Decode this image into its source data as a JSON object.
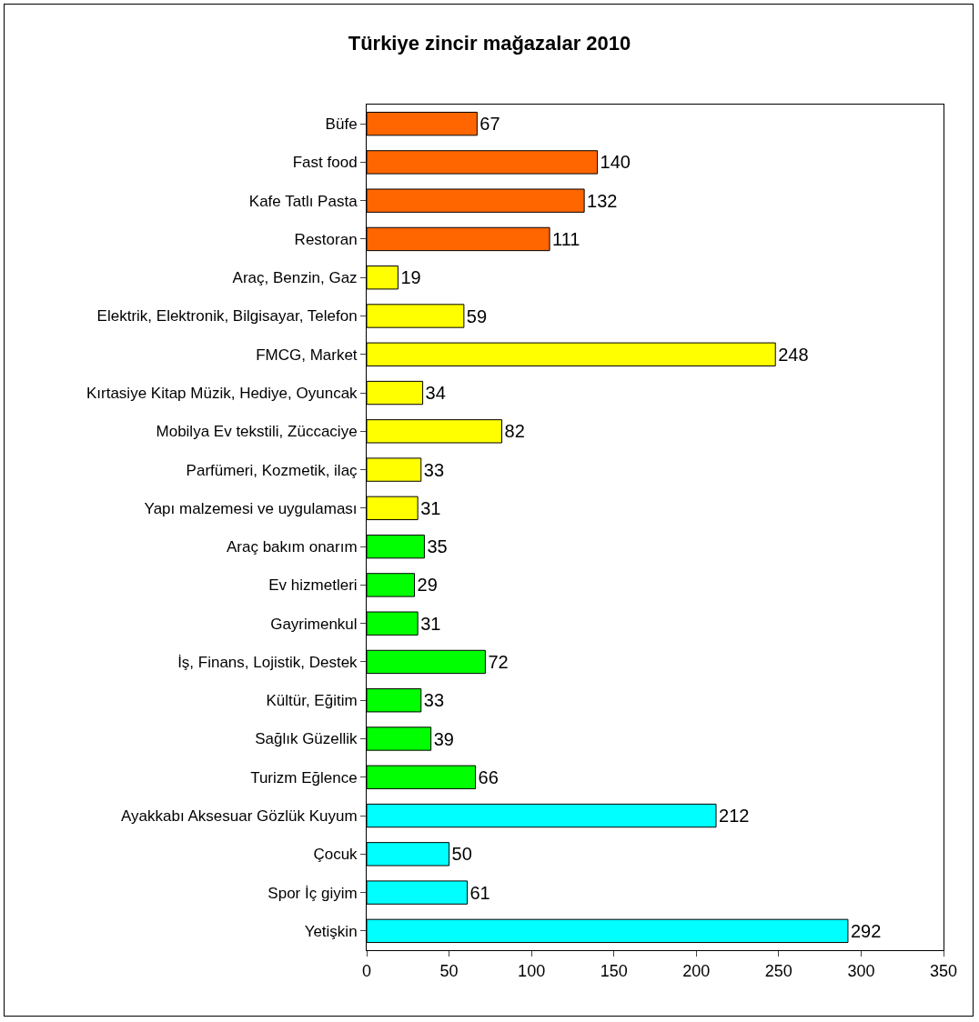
{
  "chart_data": {
    "type": "bar",
    "orientation": "horizontal",
    "title": "Türkiye zincir mağazalar 2010",
    "categories": [
      "Büfe",
      "Fast food",
      "Kafe Tatlı Pasta",
      "Restoran",
      "Araç, Benzin, Gaz",
      "Elektrik, Elektronik, Bilgisayar, Telefon",
      "FMCG, Market",
      "Kırtasiye Kitap Müzik, Hediye, Oyuncak",
      "Mobilya Ev tekstili, Züccaciye",
      "Parfümeri, Kozmetik, ilaç",
      "Yapı malzemesi ve uygulaması",
      "Araç bakım onarım",
      "Ev hizmetleri",
      "Gayrimenkul",
      "İş, Finans, Lojistik, Destek",
      "Kültür, Eğitim",
      "Sağlık Güzellik",
      "Turizm Eğlence",
      "Ayakkabı Aksesuar Gözlük Kuyum",
      "Çocuk",
      "Spor İç giyim",
      "Yetişkin"
    ],
    "values": [
      67,
      140,
      132,
      111,
      19,
      59,
      248,
      34,
      82,
      33,
      31,
      35,
      29,
      31,
      72,
      33,
      39,
      66,
      212,
      50,
      61,
      292
    ],
    "colors": [
      "#ff6600",
      "#ff6600",
      "#ff6600",
      "#ff6600",
      "#ffff00",
      "#ffff00",
      "#ffff00",
      "#ffff00",
      "#ffff00",
      "#ffff00",
      "#ffff00",
      "#00ff00",
      "#00ff00",
      "#00ff00",
      "#00ff00",
      "#00ff00",
      "#00ff00",
      "#00ff00",
      "#00ffff",
      "#00ffff",
      "#00ffff",
      "#00ffff"
    ],
    "xlim": [
      0,
      350
    ],
    "xticks": [
      0,
      50,
      100,
      150,
      200,
      250,
      300,
      350
    ],
    "grid": false,
    "data_labels": true
  }
}
